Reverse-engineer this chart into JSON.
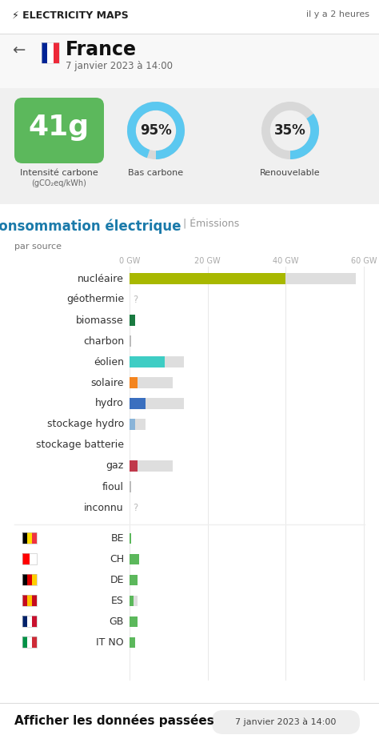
{
  "title_app": "ELECTRICITY MAPS",
  "time_label": "il y a 2 heures",
  "country": "France",
  "date": "7 janvier 2023 à 14:00",
  "carbon_intensity": "41g",
  "carbon_intensity_sub": "(gCO₂eq/kWh)",
  "carbon_intensity_label": "Intensité carbone",
  "bas_carbone_pct": 95,
  "bas_carbone_label": "Bas carbone",
  "renouvelable_pct": 35,
  "renouvelable_label": "Renouvelable",
  "section_title_main": "Consommation électrique",
  "section_title_sub": "| Émissions",
  "par_source_label": "par source",
  "axis_ticks": [
    0,
    20,
    40,
    60
  ],
  "axis_labels": [
    "0 GW",
    "20 GW",
    "40 GW",
    "60 GW"
  ],
  "sources": [
    {
      "label": "nucléaire",
      "value": 40,
      "max_value": 58,
      "color": "#a8b800",
      "show_question": false
    },
    {
      "label": "géothermie",
      "value": 0,
      "max_value": 0,
      "color": "#888888",
      "show_question": true
    },
    {
      "label": "biomasse",
      "value": 1.5,
      "max_value": 0,
      "color": "#1a7a40",
      "show_question": false
    },
    {
      "label": "charbon",
      "value": 0.5,
      "max_value": 0,
      "color": "#bbbbbb",
      "show_question": false
    },
    {
      "label": "éolien",
      "value": 9,
      "max_value": 14,
      "color": "#3ecdc4",
      "show_question": false
    },
    {
      "label": "solaire",
      "value": 2,
      "max_value": 11,
      "color": "#f4851f",
      "show_question": false
    },
    {
      "label": "hydro",
      "value": 4,
      "max_value": 14,
      "color": "#3a6fbf",
      "show_question": false
    },
    {
      "label": "stockage hydro",
      "value": 1.5,
      "max_value": 4,
      "color": "#8ab4d8",
      "show_question": false
    },
    {
      "label": "stockage batterie",
      "value": 0,
      "max_value": 0,
      "color": "#bbbbbb",
      "show_question": false
    },
    {
      "label": "gaz",
      "value": 2,
      "max_value": 11,
      "color": "#c0394b",
      "show_question": false
    },
    {
      "label": "fioul",
      "value": 0.4,
      "max_value": 0,
      "color": "#bbbbbb",
      "show_question": false
    },
    {
      "label": "inconnu",
      "value": 0,
      "max_value": 0,
      "color": "#bbbbbb",
      "show_question": true
    }
  ],
  "exports": [
    {
      "label": "BE",
      "value": 0.5,
      "max_value": 0,
      "color": "#5cb85c"
    },
    {
      "label": "CH",
      "value": 2.5,
      "max_value": 0,
      "color": "#5cb85c"
    },
    {
      "label": "DE",
      "value": 2.0,
      "max_value": 0,
      "color": "#5cb85c"
    },
    {
      "label": "ES",
      "value": 1.0,
      "max_value": 2,
      "color": "#5cb85c"
    },
    {
      "label": "GB",
      "value": 2.0,
      "max_value": 2,
      "color": "#5cb85c"
    },
    {
      "label": "IT NO",
      "value": 1.5,
      "max_value": 0,
      "color": "#5cb85c"
    }
  ],
  "flag_colors": {
    "BE": [
      "#000000",
      "#ffdd00",
      "#ef3340"
    ],
    "CH": [
      "#ff0000",
      "#ffffff"
    ],
    "DE": [
      "#000000",
      "#dd0000",
      "#ffce00"
    ],
    "ES": [
      "#c60b1e",
      "#ffc400",
      "#c60b1e"
    ],
    "GB": [
      "#012169",
      "#ffffff",
      "#c8102e"
    ],
    "IT NO": [
      "#009246",
      "#ffffff",
      "#ce2b37"
    ]
  },
  "footer_left": "Afficher les données passées",
  "footer_right": "7 janvier 2023 à 14:00",
  "bg_color": "#f0f0f0",
  "white": "#ffffff",
  "green_color": "#5cb85c",
  "blue_color": "#5bc8f0",
  "gray_color": "#d8d8d8"
}
